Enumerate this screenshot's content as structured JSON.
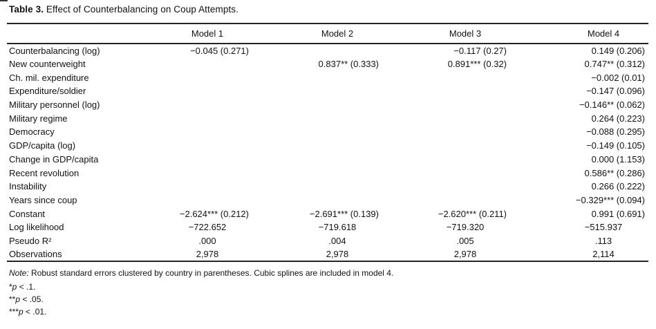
{
  "colors": {
    "background": "#ffffff",
    "text": "#111111",
    "rule": "#222222"
  },
  "table": {
    "title_bold": "Table 3.",
    "title_rest": " Effect of Counterbalancing on Coup Attempts.",
    "columns": [
      "",
      "Model 1",
      "Model 2",
      "Model 3",
      "Model 4"
    ],
    "rows": [
      {
        "label": "Counterbalancing (log)",
        "type": "coef",
        "values": [
          "−0.045 (0.271)",
          "",
          "−0.117 (0.27)",
          "0.149 (0.206)"
        ]
      },
      {
        "label": "New counterweight",
        "type": "coef",
        "values": [
          "",
          "0.837** (0.333)",
          "0.891*** (0.32)",
          "0.747** (0.312)"
        ]
      },
      {
        "label": "Ch. mil. expenditure",
        "type": "coef",
        "values": [
          "",
          "",
          "",
          "−0.002 (0.01)"
        ]
      },
      {
        "label": "Expenditure/soldier",
        "type": "coef",
        "values": [
          "",
          "",
          "",
          "−0.147 (0.096)"
        ]
      },
      {
        "label": "Military personnel (log)",
        "type": "coef",
        "values": [
          "",
          "",
          "",
          "−0.146** (0.062)"
        ]
      },
      {
        "label": "Military regime",
        "type": "coef",
        "values": [
          "",
          "",
          "",
          "0.264 (0.223)"
        ]
      },
      {
        "label": "Democracy",
        "type": "coef",
        "values": [
          "",
          "",
          "",
          "−0.088 (0.295)"
        ]
      },
      {
        "label": "GDP/capita (log)",
        "type": "coef",
        "values": [
          "",
          "",
          "",
          "−0.149 (0.105)"
        ]
      },
      {
        "label": "Change in GDP/capita",
        "type": "coef",
        "values": [
          "",
          "",
          "",
          "0.000 (1.153)"
        ]
      },
      {
        "label": "Recent revolution",
        "type": "coef",
        "values": [
          "",
          "",
          "",
          "0.586** (0.286)"
        ]
      },
      {
        "label": "Instability",
        "type": "coef",
        "values": [
          "",
          "",
          "",
          "0.266 (0.222)"
        ]
      },
      {
        "label": "Years since coup",
        "type": "coef",
        "values": [
          "",
          "",
          "",
          "−0.329*** (0.094)"
        ]
      },
      {
        "label": "Constant",
        "type": "coef",
        "values": [
          "−2.624*** (0.212)",
          "−2.691*** (0.139)",
          "−2.620*** (0.211)",
          "0.991 (0.691)"
        ]
      },
      {
        "label": "Log likelihood",
        "type": "stat",
        "values": [
          "−722.652",
          "−719.618",
          "−719.320",
          "−515.937"
        ]
      },
      {
        "label": "Pseudo R²",
        "type": "stat",
        "values": [
          ".000",
          ".004",
          ".005",
          ".113"
        ]
      },
      {
        "label": "Observations",
        "type": "stat",
        "values": [
          "2,978",
          "2,978",
          "2,978",
          "2,114"
        ]
      }
    ],
    "note_label": "Note:",
    "note_rest": " Robust standard errors clustered by country in parentheses. Cubic splines are included in model 4.",
    "footnotes": [
      {
        "marker": "*",
        "variable": "p",
        "condition": " < .1."
      },
      {
        "marker": "**",
        "variable": "p",
        "condition": " < .05."
      },
      {
        "marker": "***",
        "variable": "p",
        "condition": " < .01."
      }
    ]
  }
}
